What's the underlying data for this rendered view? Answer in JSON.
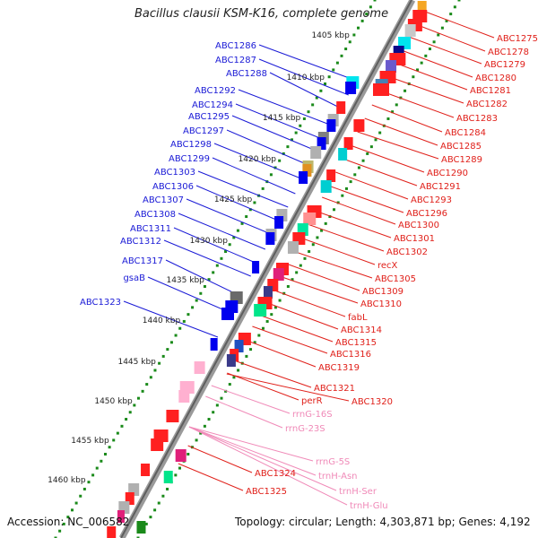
{
  "title": "Bacillus clausii KSM-K16, complete genome",
  "footer": {
    "accession": "Accession: NC_006582",
    "topology": "Topology: circular; Length: 4,303,871 bp; Genes: 4,192"
  },
  "colors": {
    "left_label": "#1a1ad6",
    "right_label": "#e0201a",
    "rna_label": "#f08ab8",
    "backbone": "#808080",
    "tick_dots": "#1a8a1a"
  },
  "scale": {
    "ticks": [
      {
        "label": "1405 kbp"
      },
      {
        "label": "1410 kbp"
      },
      {
        "label": "1415 kbp"
      },
      {
        "label": "1420 kbp"
      },
      {
        "label": "1425 kbp"
      },
      {
        "label": "1430 kbp"
      },
      {
        "label": "1435 kbp"
      },
      {
        "label": "1440 kbp"
      },
      {
        "label": "1445 kbp"
      },
      {
        "label": "1450 kbp"
      },
      {
        "label": "1455 kbp"
      },
      {
        "label": "1460 kbp"
      }
    ]
  },
  "left_labels": [
    "ABC1286",
    "ABC1287",
    "ABC1288",
    "ABC1292",
    "ABC1294",
    "ABC1295",
    "ABC1297",
    "ABC1298",
    "ABC1299",
    "ABC1303",
    "ABC1306",
    "ABC1307",
    "ABC1308",
    "ABC1311",
    "ABC1312",
    "ABC1317",
    "gsaB",
    "ABC1323"
  ],
  "right_labels": [
    "ABC1275",
    "ABC1278",
    "ABC1279",
    "ABC1280",
    "ABC1281",
    "ABC1282",
    "ABC1283",
    "ABC1284",
    "ABC1285",
    "ABC1289",
    "ABC1290",
    "ABC1291",
    "ABC1293",
    "ABC1296",
    "ABC1300",
    "ABC1301",
    "ABC1302",
    "recX",
    "ABC1305",
    "ABC1309",
    "ABC1310",
    "fabL",
    "ABC1314",
    "ABC1315",
    "ABC1316",
    "ABC1319",
    "ABC1321",
    "ABC1320",
    "perR",
    "ABC1324",
    "ABC1325"
  ],
  "rna_labels": [
    "rrnG-16S",
    "rrnG-23S",
    "rrnG-5S",
    "trnH-Asn",
    "trnH-Ser",
    "trnH-Glu"
  ]
}
